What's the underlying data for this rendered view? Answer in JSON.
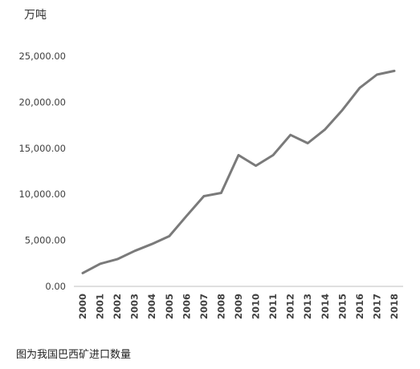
{
  "caption": "图为我国巴西矿进口数量",
  "chart_data": {
    "type": "line",
    "title": "",
    "xlabel": "",
    "ylabel": "万吨",
    "ylim": [
      0,
      25000
    ],
    "y_ticks": [
      "0.00",
      "5,000.00",
      "10,000.00",
      "15,000.00",
      "20,000.00",
      "25,000.00"
    ],
    "grid": false,
    "legend": "none",
    "line_color": "#7a7a7a",
    "axis_color": "#bfbfbf",
    "categories": [
      "2000",
      "2001",
      "2002",
      "2003",
      "2004",
      "2005",
      "2006",
      "2007",
      "2008",
      "2009",
      "2010",
      "2011",
      "2012",
      "2013",
      "2014",
      "2015",
      "2016",
      "2017",
      "2018"
    ],
    "series": [
      {
        "values": [
          1450,
          2450,
          2950,
          3850,
          4600,
          5450,
          7650,
          9800,
          10150,
          14250,
          13100,
          14250,
          16450,
          15550,
          17050,
          19150,
          21550,
          23000,
          23400
        ]
      }
    ]
  }
}
